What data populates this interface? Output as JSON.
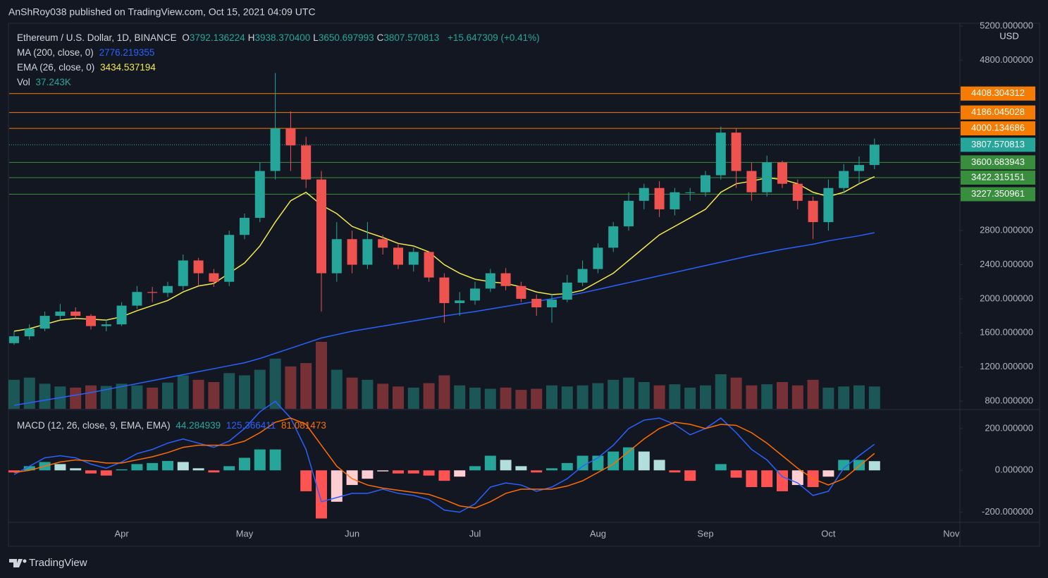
{
  "header": {
    "attribution": "AnShRoy038 published on TradingView.com, Oct 15, 2021 04:09 UTC"
  },
  "footer": {
    "brand": "TradingView"
  },
  "chart_data": [
    {
      "type": "candlestick",
      "legend": {
        "symbol": "Ethereum / U.S. Dollar, 1D, BINANCE",
        "ohlc": [
          {
            "label": "O",
            "value": "3792.136224"
          },
          {
            "label": "H",
            "value": "3938.370400"
          },
          {
            "label": "L",
            "value": "3650.697993"
          },
          {
            "label": "C",
            "value": "3807.570813"
          }
        ],
        "change": "+15.647309 (+0.41%)",
        "volume_label": "Vol",
        "volume_value": "37.243K"
      },
      "currency": "USD",
      "categories": [
        null,
        null,
        null,
        null,
        null,
        null,
        null,
        "Apr",
        null,
        null,
        null,
        null,
        null,
        null,
        null,
        "May",
        null,
        null,
        null,
        null,
        null,
        null,
        "Jun",
        null,
        null,
        null,
        null,
        null,
        null,
        null,
        "Jul",
        null,
        null,
        null,
        null,
        null,
        null,
        null,
        "Aug",
        null,
        null,
        null,
        null,
        null,
        null,
        "Sep",
        null,
        null,
        null,
        null,
        null,
        null,
        null,
        "Oct",
        null,
        null,
        null,
        null,
        null,
        null,
        null,
        "Nov"
      ],
      "open": [
        1480,
        1560,
        1650,
        1800,
        1850,
        1800,
        1680,
        1700,
        1920,
        2080,
        2070,
        2150,
        2450,
        2300,
        2200,
        2750,
        2950,
        3500,
        4000,
        3800,
        3400,
        2300,
        2700,
        2400,
        2700,
        2600,
        2400,
        2550,
        2250,
        1950,
        1980,
        2120,
        2300,
        2150,
        2000,
        1900,
        1990,
        2190,
        2350,
        2600,
        2850,
        3150,
        3300,
        3050,
        3250,
        3250,
        3450,
        3950,
        3500,
        3250,
        3600,
        3350,
        3150,
        2900,
        3300,
        3500,
        3570,
        null,
        null,
        null,
        null,
        null
      ],
      "high": [
        1620,
        1700,
        1850,
        1940,
        1900,
        1820,
        1760,
        1960,
        2150,
        2140,
        2200,
        2520,
        2480,
        2350,
        2800,
        3000,
        3600,
        4650,
        4200,
        3900,
        3500,
        2900,
        2800,
        2900,
        2750,
        2650,
        2600,
        2560,
        2300,
        2080,
        2200,
        2350,
        2360,
        2200,
        2050,
        2060,
        2280,
        2450,
        2650,
        2900,
        3250,
        3350,
        3380,
        3300,
        3300,
        3500,
        4020,
        4000,
        3600,
        3680,
        3620,
        3400,
        3200,
        3400,
        3580,
        3670,
        3880,
        null,
        null,
        null,
        null,
        null
      ],
      "low": [
        1460,
        1520,
        1620,
        1760,
        1760,
        1640,
        1620,
        1680,
        1880,
        1960,
        2020,
        2100,
        2150,
        2140,
        2150,
        2700,
        2900,
        3400,
        3500,
        3300,
        1850,
        2200,
        2300,
        2350,
        2520,
        2350,
        2320,
        2200,
        1720,
        1800,
        1930,
        2080,
        2100,
        1960,
        1800,
        1720,
        1960,
        2150,
        2300,
        2550,
        2800,
        3050,
        2960,
        2980,
        3150,
        3200,
        3400,
        3300,
        3150,
        3200,
        3300,
        3050,
        2700,
        2800,
        3240,
        3350,
        3520,
        null,
        null,
        null,
        null,
        null
      ],
      "close": [
        1560,
        1650,
        1800,
        1850,
        1800,
        1680,
        1700,
        1920,
        2080,
        2070,
        2150,
        2450,
        2300,
        2200,
        2750,
        2950,
        3500,
        4000,
        3800,
        3400,
        2300,
        2700,
        2400,
        2700,
        2600,
        2400,
        2550,
        2250,
        1950,
        1980,
        2120,
        2300,
        2150,
        2000,
        1900,
        1990,
        2190,
        2350,
        2600,
        2850,
        3150,
        3300,
        3050,
        3250,
        3250,
        3450,
        3950,
        3500,
        3250,
        3600,
        3350,
        3150,
        2900,
        3300,
        3500,
        3570,
        3808,
        null,
        null,
        null,
        null,
        null
      ],
      "volume": [
        520,
        560,
        450,
        400,
        380,
        420,
        410,
        450,
        420,
        380,
        470,
        600,
        520,
        480,
        640,
        600,
        700,
        900,
        760,
        820,
        1200,
        700,
        560,
        520,
        450,
        400,
        380,
        460,
        600,
        420,
        380,
        360,
        380,
        340,
        360,
        420,
        400,
        420,
        460,
        520,
        560,
        480,
        420,
        440,
        380,
        420,
        620,
        560,
        420,
        440,
        480,
        420,
        520,
        380,
        400,
        420,
        400,
        null,
        null,
        null,
        null,
        null
      ],
      "up_color": "#26a69a",
      "down_color": "#ef5350",
      "series": [
        {
          "name": "MA (200, close, 0)",
          "value_text": "2776.219355",
          "color": "#2962ff",
          "values": [
            750,
            780,
            810,
            840,
            870,
            900,
            935,
            970,
            1005,
            1040,
            1075,
            1110,
            1145,
            1180,
            1215,
            1250,
            1300,
            1360,
            1420,
            1480,
            1540,
            1580,
            1620,
            1650,
            1680,
            1710,
            1740,
            1770,
            1800,
            1825,
            1850,
            1880,
            1910,
            1940,
            1970,
            2000,
            2035,
            2070,
            2110,
            2150,
            2190,
            2230,
            2270,
            2310,
            2350,
            2390,
            2430,
            2470,
            2510,
            2545,
            2580,
            2610,
            2640,
            2680,
            2710,
            2740,
            2776,
            null,
            null,
            null,
            null,
            null
          ]
        },
        {
          "name": "EMA (26, close, 0)",
          "value_text": "3434.537194",
          "color": "#f5e94c",
          "values": [
            1620,
            1650,
            1700,
            1750,
            1770,
            1760,
            1750,
            1790,
            1860,
            1920,
            1980,
            2080,
            2150,
            2180,
            2300,
            2420,
            2620,
            2900,
            3150,
            3250,
            3100,
            3000,
            2850,
            2780,
            2720,
            2650,
            2620,
            2550,
            2400,
            2300,
            2230,
            2200,
            2180,
            2140,
            2080,
            2050,
            2060,
            2100,
            2200,
            2300,
            2450,
            2600,
            2750,
            2850,
            2950,
            3050,
            3250,
            3350,
            3380,
            3420,
            3400,
            3350,
            3250,
            3200,
            3250,
            3350,
            3434,
            null,
            null,
            null,
            null,
            null
          ]
        }
      ],
      "levels": [
        {
          "value": 4408.304312,
          "color": "#f57c00"
        },
        {
          "value": 4186.045028,
          "color": "#f57c00"
        },
        {
          "value": 4000.134686,
          "color": "#f57c00"
        },
        {
          "value": 3600.683943,
          "color": "#388e3c"
        },
        {
          "value": 3422.315151,
          "color": "#388e3c"
        },
        {
          "value": 3227.350961,
          "color": "#388e3c"
        }
      ],
      "last_price": {
        "value": 3807.570813,
        "color": "#26a69a"
      },
      "ylim": [
        709,
        5258
      ],
      "yticks": [
        {
          "value": 800,
          "label": "800.000000"
        },
        {
          "value": 1200,
          "label": "1200.000000"
        },
        {
          "value": 1600,
          "label": "1600.000000"
        },
        {
          "value": 2000,
          "label": "2000.000000"
        },
        {
          "value": 2400,
          "label": "2400.000000"
        },
        {
          "value": 2800,
          "label": "2800.000000"
        },
        {
          "value": 4800,
          "label": "4800.000000"
        },
        {
          "value": 5200,
          "label": "5200.000000"
        }
      ],
      "grid": false
    },
    {
      "type": "macd",
      "name": "MACD (12, 26, close, 9, EMA, EMA)",
      "histogram": {
        "value_text": "44.284939",
        "color": "#26a69a",
        "colors": {
          "pos_up": "#26a69a",
          "pos_down": "#b2dfdb",
          "neg_down": "#ff5252",
          "neg_up": "#ffcdd2"
        },
        "values": [
          -10,
          20,
          40,
          30,
          10,
          -15,
          -25,
          5,
          30,
          35,
          45,
          40,
          10,
          -10,
          20,
          60,
          100,
          100,
          0,
          -100,
          -230,
          -150,
          -70,
          -40,
          -5,
          -15,
          -15,
          -25,
          -50,
          -30,
          20,
          70,
          50,
          20,
          -10,
          10,
          35,
          70,
          70,
          90,
          110,
          90,
          50,
          -10,
          -50,
          0,
          30,
          -35,
          -80,
          -80,
          -100,
          -70,
          -80,
          -30,
          50,
          50,
          44,
          null,
          null,
          null,
          null,
          null
        ]
      },
      "series": [
        {
          "name": "MACD",
          "value_text": "125.366411",
          "color": "#2962ff",
          "values": [
            -20,
            20,
            60,
            70,
            60,
            30,
            10,
            40,
            80,
            100,
            130,
            150,
            130,
            110,
            140,
            200,
            280,
            330,
            250,
            100,
            -150,
            -130,
            -110,
            -110,
            -90,
            -110,
            -120,
            -140,
            -190,
            -200,
            -160,
            -80,
            -60,
            -70,
            -100,
            -80,
            -40,
            20,
            60,
            120,
            200,
            240,
            250,
            220,
            170,
            200,
            250,
            180,
            100,
            50,
            -30,
            -60,
            -120,
            -100,
            10,
            70,
            125,
            null,
            null,
            null,
            null,
            null
          ]
        },
        {
          "name": "Signal",
          "value_text": "81.081473",
          "color": "#ff6d00",
          "values": [
            -10,
            0,
            20,
            40,
            50,
            45,
            35,
            35,
            50,
            65,
            85,
            110,
            120,
            120,
            120,
            140,
            180,
            230,
            250,
            220,
            120,
            20,
            -40,
            -70,
            -85,
            -95,
            -105,
            -115,
            -140,
            -170,
            -180,
            -150,
            -110,
            -90,
            -90,
            -90,
            -75,
            -50,
            -10,
            30,
            90,
            150,
            200,
            230,
            220,
            200,
            220,
            215,
            180,
            130,
            70,
            10,
            -40,
            -70,
            -40,
            20,
            81,
            null,
            null,
            null,
            null,
            null
          ]
        }
      ],
      "ylim": [
        -245,
        284
      ],
      "yticks": [
        {
          "value": 200,
          "label": "200.000000"
        },
        {
          "value": 0,
          "label": "0.000000"
        },
        {
          "value": -200,
          "label": "-200.000000"
        }
      ]
    }
  ]
}
